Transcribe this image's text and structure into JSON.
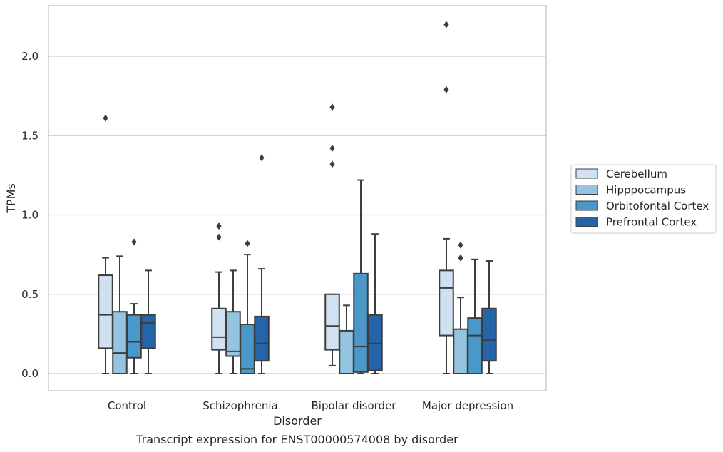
{
  "chart_data": {
    "type": "boxplot",
    "xlabel": "Disorder",
    "ylabel": "TPMs",
    "caption": "Transcript expression for ENST00000574008 by disorder",
    "ylim": [
      -0.1,
      2.32
    ],
    "yticks": [
      "0.0",
      "0.5",
      "1.0",
      "1.5",
      "2.0"
    ],
    "ytick_values": [
      0.0,
      0.5,
      1.0,
      1.5,
      2.0
    ],
    "grid": "horizontal",
    "legend_position": "right",
    "categories": [
      "Control",
      "Schizophrenia",
      "Bipolar disorder",
      "Major depression"
    ],
    "series": [
      {
        "name": "Cerebellum",
        "color": "#d0e1f2",
        "boxes": [
          {
            "whislo": 0.0,
            "q1": 0.16,
            "med": 0.37,
            "q3": 0.62,
            "whishi": 0.73,
            "fliers": [
              1.61
            ]
          },
          {
            "whislo": 0.0,
            "q1": 0.15,
            "med": 0.23,
            "q3": 0.41,
            "whishi": 0.64,
            "fliers": [
              0.86,
              0.93
            ]
          },
          {
            "whislo": 0.05,
            "q1": 0.15,
            "med": 0.3,
            "q3": 0.5,
            "whishi": 0.5,
            "fliers": [
              1.32,
              1.42,
              1.68
            ]
          },
          {
            "whislo": 0.0,
            "q1": 0.24,
            "med": 0.54,
            "q3": 0.65,
            "whishi": 0.85,
            "fliers": [
              1.79,
              2.2
            ]
          }
        ]
      },
      {
        "name": "Hipppocampus",
        "color": "#94c4df",
        "boxes": [
          {
            "whislo": 0.0,
            "q1": 0.0,
            "med": 0.13,
            "q3": 0.39,
            "whishi": 0.74,
            "fliers": []
          },
          {
            "whislo": 0.0,
            "q1": 0.11,
            "med": 0.14,
            "q3": 0.39,
            "whishi": 0.65,
            "fliers": []
          },
          {
            "whislo": 0.0,
            "q1": 0.0,
            "med": 0.0,
            "q3": 0.27,
            "whishi": 0.43,
            "fliers": []
          },
          {
            "whislo": 0.0,
            "q1": 0.0,
            "med": 0.0,
            "q3": 0.28,
            "whishi": 0.48,
            "fliers": [
              0.73,
              0.81
            ]
          }
        ]
      },
      {
        "name": "Orbitofontal Cortex",
        "color": "#4a98c9",
        "boxes": [
          {
            "whislo": 0.0,
            "q1": 0.1,
            "med": 0.2,
            "q3": 0.37,
            "whishi": 0.44,
            "fliers": [
              0.83
            ]
          },
          {
            "whislo": 0.0,
            "q1": 0.0,
            "med": 0.03,
            "q3": 0.31,
            "whishi": 0.75,
            "fliers": [
              0.82
            ]
          },
          {
            "whislo": 0.0,
            "q1": 0.01,
            "med": 0.17,
            "q3": 0.63,
            "whishi": 1.22,
            "fliers": []
          },
          {
            "whislo": 0.0,
            "q1": 0.0,
            "med": 0.24,
            "q3": 0.35,
            "whishi": 0.72,
            "fliers": []
          }
        ]
      },
      {
        "name": "Prefrontal Cortex",
        "color": "#2464a8",
        "boxes": [
          {
            "whislo": 0.0,
            "q1": 0.16,
            "med": 0.32,
            "q3": 0.37,
            "whishi": 0.65,
            "fliers": []
          },
          {
            "whislo": 0.0,
            "q1": 0.08,
            "med": 0.19,
            "q3": 0.36,
            "whishi": 0.66,
            "fliers": [
              1.36
            ]
          },
          {
            "whislo": 0.0,
            "q1": 0.02,
            "med": 0.19,
            "q3": 0.37,
            "whishi": 0.88,
            "fliers": []
          },
          {
            "whislo": 0.0,
            "q1": 0.08,
            "med": 0.21,
            "q3": 0.41,
            "whishi": 0.71,
            "fliers": []
          }
        ]
      }
    ]
  }
}
